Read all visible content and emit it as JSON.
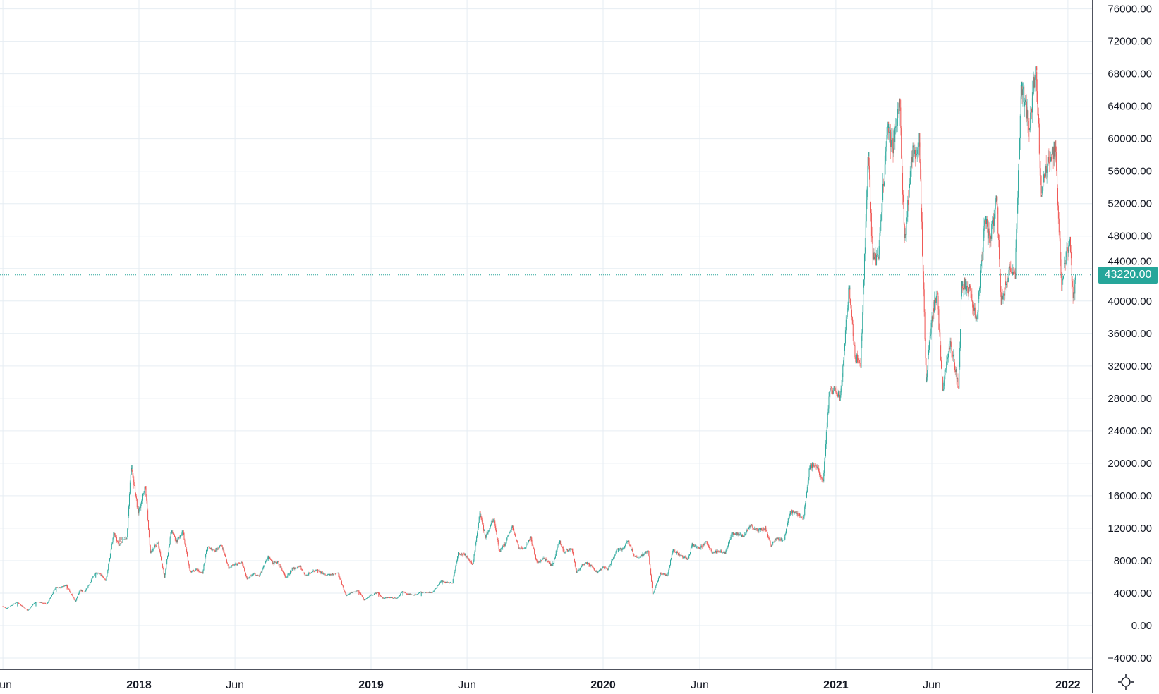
{
  "chart_data": {
    "type": "candlestick",
    "title": "",
    "xlabel": "",
    "ylabel": "",
    "ylim": [
      -4000,
      76000
    ],
    "grid": true,
    "yticks": [
      "76000.00",
      "72000.00",
      "68000.00",
      "64000.00",
      "60000.00",
      "56000.00",
      "52000.00",
      "48000.00",
      "44000.00",
      "40000.00",
      "36000.00",
      "32000.00",
      "28000.00",
      "24000.00",
      "20000.00",
      "16000.00",
      "12000.00",
      "8000.00",
      "4000.00",
      "0.00",
      "−4000.00"
    ],
    "xticks": [
      {
        "label": "Jun",
        "date": "2017-06-01",
        "bold": false
      },
      {
        "label": "2018",
        "date": "2018-01-01",
        "bold": true
      },
      {
        "label": "Jun",
        "date": "2018-06-01",
        "bold": false
      },
      {
        "label": "2019",
        "date": "2019-01-01",
        "bold": true
      },
      {
        "label": "Jun",
        "date": "2019-06-01",
        "bold": false
      },
      {
        "label": "2020",
        "date": "2020-01-01",
        "bold": true
      },
      {
        "label": "Jun",
        "date": "2020-06-01",
        "bold": false
      },
      {
        "label": "2021",
        "date": "2021-01-01",
        "bold": true
      },
      {
        "label": "Jun",
        "date": "2021-06-01",
        "bold": false
      },
      {
        "label": "2022",
        "date": "2022-01-01",
        "bold": true
      }
    ],
    "last_price": "43220.00",
    "last_price_value": 43220,
    "colors": {
      "up": "#26a69a",
      "down": "#ef5350",
      "grid": "#e6edf3",
      "last_price": "#26a69a"
    },
    "monthly_ohlc": {
      "columns": [
        "month",
        "open",
        "high",
        "low",
        "close"
      ],
      "rows": [
        [
          "2017-06",
          2400,
          2900,
          2100,
          2480
        ],
        [
          "2017-07",
          2480,
          2900,
          1850,
          2870
        ],
        [
          "2017-08",
          2870,
          4700,
          2650,
          4700
        ],
        [
          "2017-09",
          4700,
          4980,
          2950,
          4340
        ],
        [
          "2017-10",
          4340,
          6450,
          4150,
          6450
        ],
        [
          "2017-11",
          6450,
          11400,
          5500,
          9950
        ],
        [
          "2017-12",
          9950,
          19800,
          10900,
          13800
        ],
        [
          "2018-01",
          13800,
          17200,
          9000,
          10200
        ],
        [
          "2018-02",
          10200,
          11800,
          6000,
          10300
        ],
        [
          "2018-03",
          10300,
          11700,
          6600,
          6900
        ],
        [
          "2018-04",
          6900,
          9700,
          6500,
          9250
        ],
        [
          "2018-05",
          9250,
          9900,
          7100,
          7500
        ],
        [
          "2018-06",
          7500,
          7800,
          5750,
          6400
        ],
        [
          "2018-07",
          6400,
          8500,
          6100,
          7730
        ],
        [
          "2018-08",
          7730,
          7800,
          5900,
          7000
        ],
        [
          "2018-09",
          7000,
          7400,
          6100,
          6600
        ],
        [
          "2018-10",
          6600,
          6950,
          6200,
          6300
        ],
        [
          "2018-11",
          6300,
          6500,
          3600,
          4000
        ],
        [
          "2018-12",
          4000,
          4300,
          3150,
          3700
        ],
        [
          "2019-01",
          3700,
          4100,
          3350,
          3450
        ],
        [
          "2019-02",
          3450,
          4200,
          3350,
          3850
        ],
        [
          "2019-03",
          3850,
          4150,
          3800,
          4100
        ],
        [
          "2019-04",
          4100,
          5600,
          4050,
          5300
        ],
        [
          "2019-05",
          5300,
          9000,
          5300,
          8550
        ],
        [
          "2019-06",
          8550,
          13900,
          7500,
          10800
        ],
        [
          "2019-07",
          10800,
          13200,
          9050,
          10100
        ],
        [
          "2019-08",
          10100,
          12300,
          9400,
          9600
        ],
        [
          "2019-09",
          9600,
          10900,
          7700,
          8300
        ],
        [
          "2019-10",
          8300,
          10500,
          7300,
          9150
        ],
        [
          "2019-11",
          9150,
          9500,
          6500,
          7550
        ],
        [
          "2019-12",
          7550,
          7750,
          6450,
          7200
        ],
        [
          "2020-01",
          7200,
          9550,
          6850,
          9350
        ],
        [
          "2020-02",
          9350,
          10500,
          8450,
          8550
        ],
        [
          "2020-03",
          8550,
          9200,
          3850,
          6450
        ],
        [
          "2020-04",
          6450,
          9450,
          6150,
          8650
        ],
        [
          "2020-05",
          8650,
          10050,
          8100,
          9450
        ],
        [
          "2020-06",
          9450,
          10400,
          8900,
          9150
        ],
        [
          "2020-07",
          9150,
          11450,
          8950,
          11350
        ],
        [
          "2020-08",
          11350,
          12450,
          10900,
          11650
        ],
        [
          "2020-09",
          11650,
          12100,
          9850,
          10800
        ],
        [
          "2020-10",
          10800,
          14100,
          10400,
          13800
        ],
        [
          "2020-11",
          13800,
          19800,
          13200,
          19700
        ],
        [
          "2020-12",
          19700,
          29300,
          17600,
          28950
        ],
        [
          "2021-01",
          28950,
          41950,
          28100,
          33100
        ],
        [
          "2021-02",
          33100,
          58350,
          32300,
          45150
        ],
        [
          "2021-03",
          45150,
          61800,
          45000,
          58800
        ],
        [
          "2021-04",
          58800,
          64850,
          47050,
          57750
        ],
        [
          "2021-05",
          57750,
          59500,
          30000,
          37300
        ],
        [
          "2021-06",
          37300,
          41300,
          28800,
          35050
        ],
        [
          "2021-07",
          35050,
          42400,
          29300,
          41500
        ],
        [
          "2021-08",
          41500,
          50500,
          37350,
          47150
        ],
        [
          "2021-09",
          47150,
          52900,
          39600,
          43800
        ],
        [
          "2021-10",
          43800,
          67000,
          43300,
          61300
        ],
        [
          "2021-11",
          61300,
          69000,
          53250,
          57000
        ],
        [
          "2021-12",
          57000,
          59050,
          42000,
          46300
        ],
        [
          "2022-01",
          46300,
          47900,
          39650,
          43220
        ]
      ]
    }
  },
  "ui": {
    "settings_icon": "sun-gear-icon"
  }
}
